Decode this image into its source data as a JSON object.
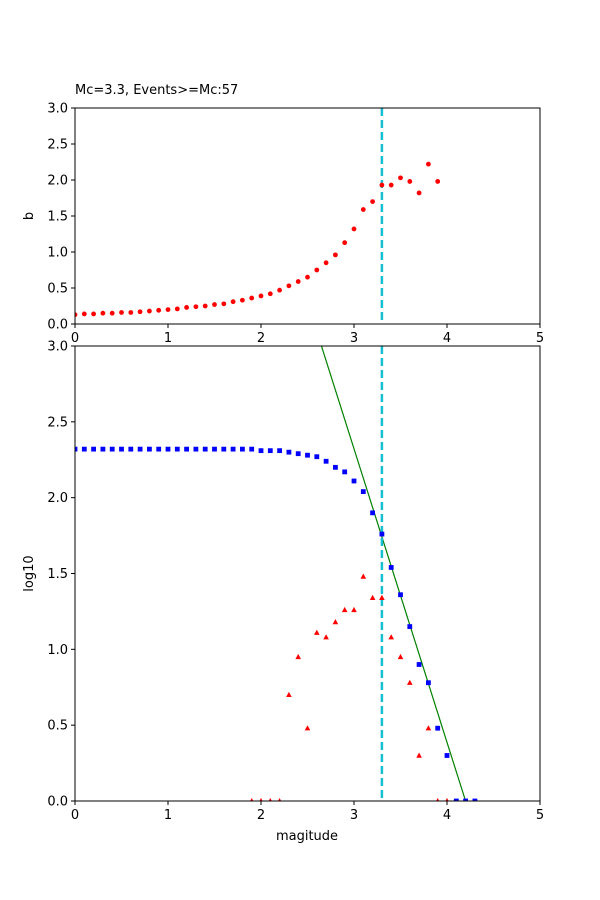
{
  "chart_data": [
    {
      "type": "scatter",
      "title": "Mc=3.3, Events>=Mc:57",
      "xlabel": "",
      "ylabel": "b",
      "xlim": [
        0,
        5
      ],
      "ylim": [
        0,
        3.0
      ],
      "xticks": [
        "0",
        "1",
        "2",
        "3",
        "4",
        "5"
      ],
      "yticks": [
        "0.0",
        "0.5",
        "1.0",
        "1.5",
        "2.0",
        "2.5",
        "3.0"
      ],
      "grid": false,
      "vline": {
        "x": 3.3,
        "color": "#17becf",
        "style": "dashed"
      },
      "series": [
        {
          "color": "#ff0000",
          "marker": "circle",
          "x": [
            0.0,
            0.1,
            0.2,
            0.3,
            0.4,
            0.5,
            0.6,
            0.7,
            0.8,
            0.9,
            1.0,
            1.1,
            1.2,
            1.3,
            1.4,
            1.5,
            1.6,
            1.7,
            1.8,
            1.9,
            2.0,
            2.1,
            2.2,
            2.3,
            2.4,
            2.5,
            2.6,
            2.7,
            2.8,
            2.9,
            3.0,
            3.1,
            3.2,
            3.3,
            3.4,
            3.5,
            3.6,
            3.7,
            3.8,
            3.9
          ],
          "y": [
            0.13,
            0.14,
            0.14,
            0.15,
            0.15,
            0.16,
            0.16,
            0.17,
            0.18,
            0.19,
            0.2,
            0.21,
            0.23,
            0.24,
            0.25,
            0.27,
            0.28,
            0.31,
            0.33,
            0.36,
            0.39,
            0.42,
            0.47,
            0.53,
            0.59,
            0.65,
            0.75,
            0.85,
            0.96,
            1.13,
            1.32,
            1.59,
            1.7,
            1.93,
            1.93,
            2.03,
            1.98,
            1.82,
            2.22,
            1.98
          ]
        }
      ]
    },
    {
      "type": "scatter",
      "title": "",
      "xlabel": "magitude",
      "ylabel": "log10",
      "xlim": [
        0,
        5
      ],
      "ylim": [
        0,
        3.0
      ],
      "xticks": [
        "0",
        "1",
        "2",
        "3",
        "4",
        "5"
      ],
      "yticks": [
        "0.0",
        "0.5",
        "1.0",
        "1.5",
        "2.0",
        "2.5",
        "3.0"
      ],
      "grid": false,
      "vline": {
        "x": 3.3,
        "color": "#17becf",
        "style": "dashed"
      },
      "fit_line": {
        "color": "#008000",
        "x": [
          2.65,
          4.2
        ],
        "y": [
          3.0,
          0.0
        ]
      },
      "series": [
        {
          "color": "#0000ff",
          "marker": "square",
          "x": [
            0.0,
            0.1,
            0.2,
            0.3,
            0.4,
            0.5,
            0.6,
            0.7,
            0.8,
            0.9,
            1.0,
            1.1,
            1.2,
            1.3,
            1.4,
            1.5,
            1.6,
            1.7,
            1.8,
            1.9,
            2.0,
            2.1,
            2.2,
            2.3,
            2.4,
            2.5,
            2.6,
            2.7,
            2.8,
            2.9,
            3.0,
            3.1,
            3.2,
            3.3,
            3.4,
            3.5,
            3.6,
            3.7,
            3.8,
            3.9,
            4.0,
            4.1,
            4.2,
            4.3
          ],
          "y": [
            2.32,
            2.32,
            2.32,
            2.32,
            2.32,
            2.32,
            2.32,
            2.32,
            2.32,
            2.32,
            2.32,
            2.32,
            2.32,
            2.32,
            2.32,
            2.32,
            2.32,
            2.32,
            2.32,
            2.32,
            2.31,
            2.31,
            2.31,
            2.3,
            2.29,
            2.28,
            2.27,
            2.24,
            2.2,
            2.17,
            2.11,
            2.04,
            1.9,
            1.76,
            1.54,
            1.36,
            1.15,
            0.9,
            0.78,
            0.48,
            0.3,
            0.0,
            0.0,
            0.0
          ]
        },
        {
          "color": "#ff0000",
          "marker": "triangle",
          "x": [
            1.9,
            2.0,
            2.1,
            2.2,
            2.3,
            2.4,
            2.5,
            2.6,
            2.7,
            2.8,
            2.9,
            3.0,
            3.1,
            3.2,
            3.3,
            3.4,
            3.5,
            3.6,
            3.7,
            3.8,
            3.9,
            4.0
          ],
          "y": [
            0.0,
            0.0,
            0.0,
            0.0,
            0.7,
            0.95,
            0.48,
            1.11,
            1.08,
            1.18,
            1.26,
            1.26,
            1.48,
            1.34,
            1.34,
            1.08,
            0.95,
            0.78,
            0.3,
            0.48,
            0.0,
            0.0
          ]
        }
      ]
    }
  ]
}
